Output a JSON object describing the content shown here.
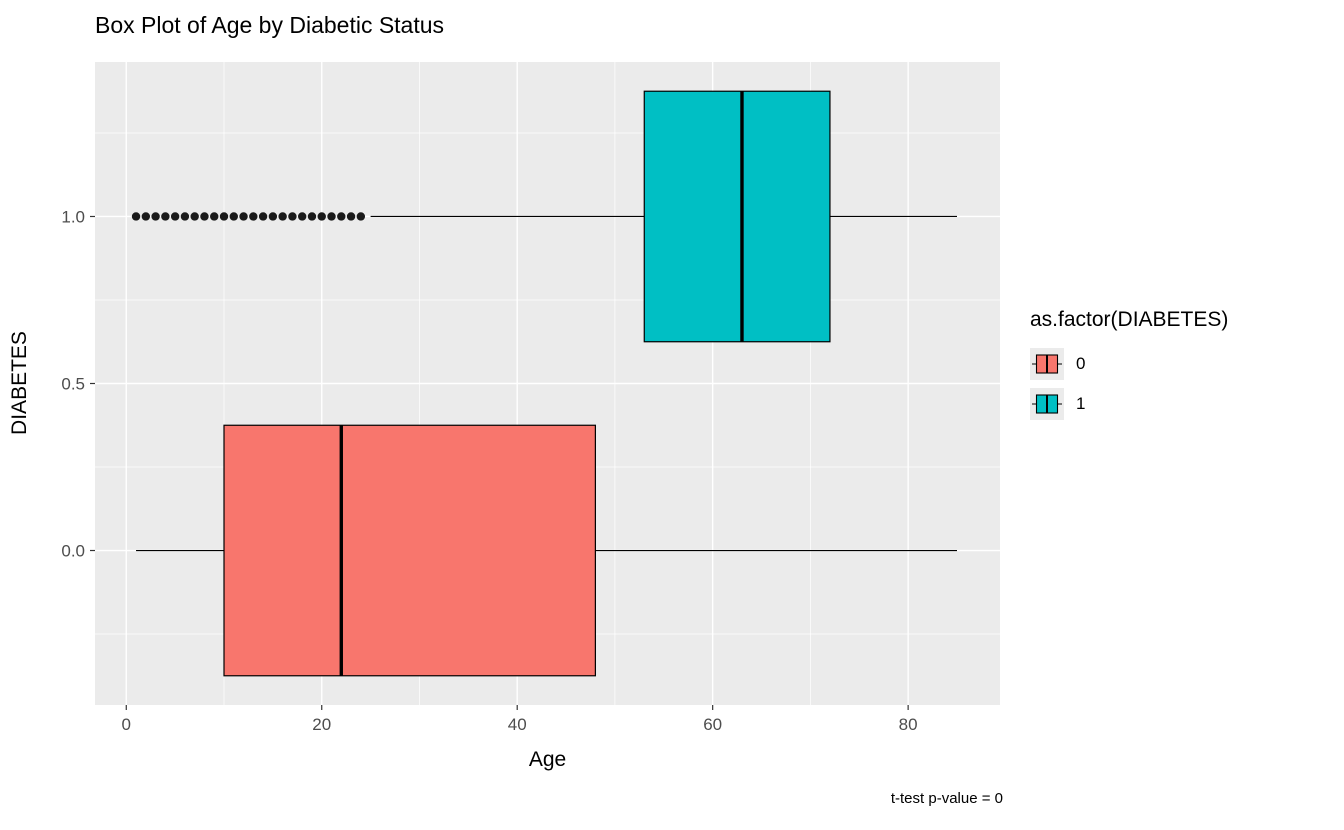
{
  "title": "Box Plot of Age by Diabetic Status",
  "caption": "t-test p-value = 0",
  "axes": {
    "x": {
      "label": "Age",
      "ticks": [
        0,
        20,
        40,
        60,
        80
      ],
      "tick_labels": [
        "0",
        "20",
        "40",
        "60",
        "80"
      ],
      "minor": [
        10,
        30,
        50,
        70
      ],
      "domain": [
        -3.2,
        89.4
      ]
    },
    "y": {
      "label": "DIABETES",
      "ticks": [
        0.0,
        0.5,
        1.0
      ],
      "tick_labels": [
        "0.0",
        "0.5",
        "1.0"
      ],
      "minor": [
        -0.25,
        0.25,
        0.75,
        1.25
      ],
      "domain": [
        -0.4625,
        1.4625
      ]
    }
  },
  "legend": {
    "title": "as.factor(DIABETES)",
    "items": [
      {
        "label": "0",
        "color": "#F8766D"
      },
      {
        "label": "1",
        "color": "#00BFC4"
      }
    ]
  },
  "colors": {
    "panel": "#EBEBEB",
    "grid": "#FFFFFF",
    "stroke": "#000000",
    "tick_text": "#4D4D4D",
    "tick_mark": "#333333",
    "key_bg": "#EBEBEB"
  },
  "chart_data": {
    "type": "boxplot",
    "orientation": "horizontal",
    "xlabel": "Age",
    "ylabel": "DIABETES",
    "box_half_height": 0.375,
    "series": [
      {
        "name": "0",
        "color": "#F8766D",
        "center_y": 0.0,
        "whisker_min": 1,
        "q1": 10,
        "median": 22,
        "q3": 48,
        "whisker_max": 85,
        "outliers": []
      },
      {
        "name": "1",
        "color": "#00BFC4",
        "center_y": 1.0,
        "whisker_min": 25,
        "q1": 53,
        "median": 63,
        "q3": 72,
        "whisker_max": 85,
        "outliers": [
          1,
          2,
          3,
          4,
          5,
          6,
          7,
          8,
          9,
          10,
          11,
          12,
          13,
          14,
          15,
          16,
          17,
          18,
          19,
          20,
          21,
          22,
          23,
          24
        ]
      }
    ]
  }
}
